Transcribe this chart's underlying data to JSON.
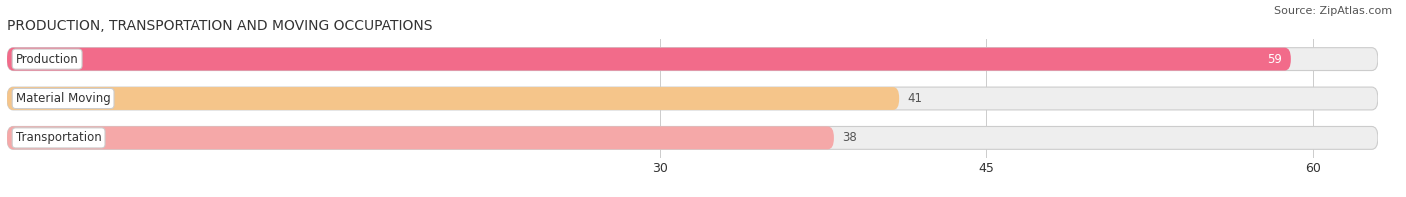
{
  "title": "PRODUCTION, TRANSPORTATION AND MOVING OCCUPATIONS",
  "source": "Source: ZipAtlas.com",
  "categories": [
    "Production",
    "Material Moving",
    "Transportation"
  ],
  "values": [
    59,
    41,
    38
  ],
  "bar_colors": [
    "#f26b8a",
    "#f5c58a",
    "#f5a8a8"
  ],
  "bar_bg_colors": [
    "#eeeeee",
    "#eeeeee",
    "#eeeeee"
  ],
  "value_colors": [
    "#ffffff",
    "#555555",
    "#555555"
  ],
  "value_inside": [
    true,
    false,
    false
  ],
  "xlim": [
    0,
    63
  ],
  "xmin": 0,
  "xticks": [
    30,
    45,
    60
  ],
  "figsize": [
    14.06,
    1.97
  ],
  "dpi": 100,
  "title_fontsize": 10,
  "bar_height": 0.58,
  "bar_label_fontsize": 8.5,
  "value_fontsize": 8.5,
  "source_fontsize": 8,
  "tick_fontsize": 9
}
